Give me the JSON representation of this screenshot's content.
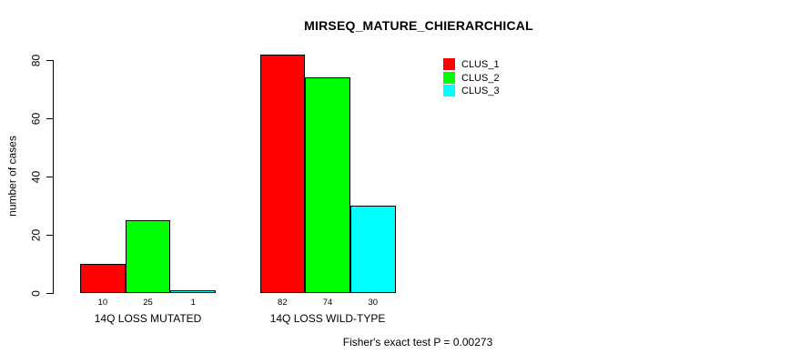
{
  "chart_data": {
    "type": "bar",
    "title": "MIRSEQ_MATURE_CHIERARCHICAL",
    "xlabel": "",
    "ylabel": "number of cases",
    "categories": [
      "14Q LOSS MUTATED",
      "14Q LOSS WILD-TYPE"
    ],
    "series": [
      {
        "name": "CLUS_1",
        "color": "#ff0000",
        "values": [
          10,
          82
        ]
      },
      {
        "name": "CLUS_2",
        "color": "#00ff00",
        "values": [
          25,
          74
        ]
      },
      {
        "name": "CLUS_3",
        "color": "#00ffff",
        "values": [
          1,
          30
        ]
      }
    ],
    "bar_value_labels": [
      [
        "10",
        "25",
        "1"
      ],
      [
        "82",
        "74",
        "30"
      ]
    ],
    "y_ticks": [
      0,
      20,
      40,
      60,
      80
    ],
    "ylim": [
      0,
      82
    ],
    "grid": false,
    "legend_position": "top-right-inside",
    "annotation": "Fisher's exact test P = 0.00273"
  },
  "colors": {
    "axis": "#000000",
    "bar_border": "#000000",
    "text": "#000000",
    "background": "#ffffff"
  }
}
